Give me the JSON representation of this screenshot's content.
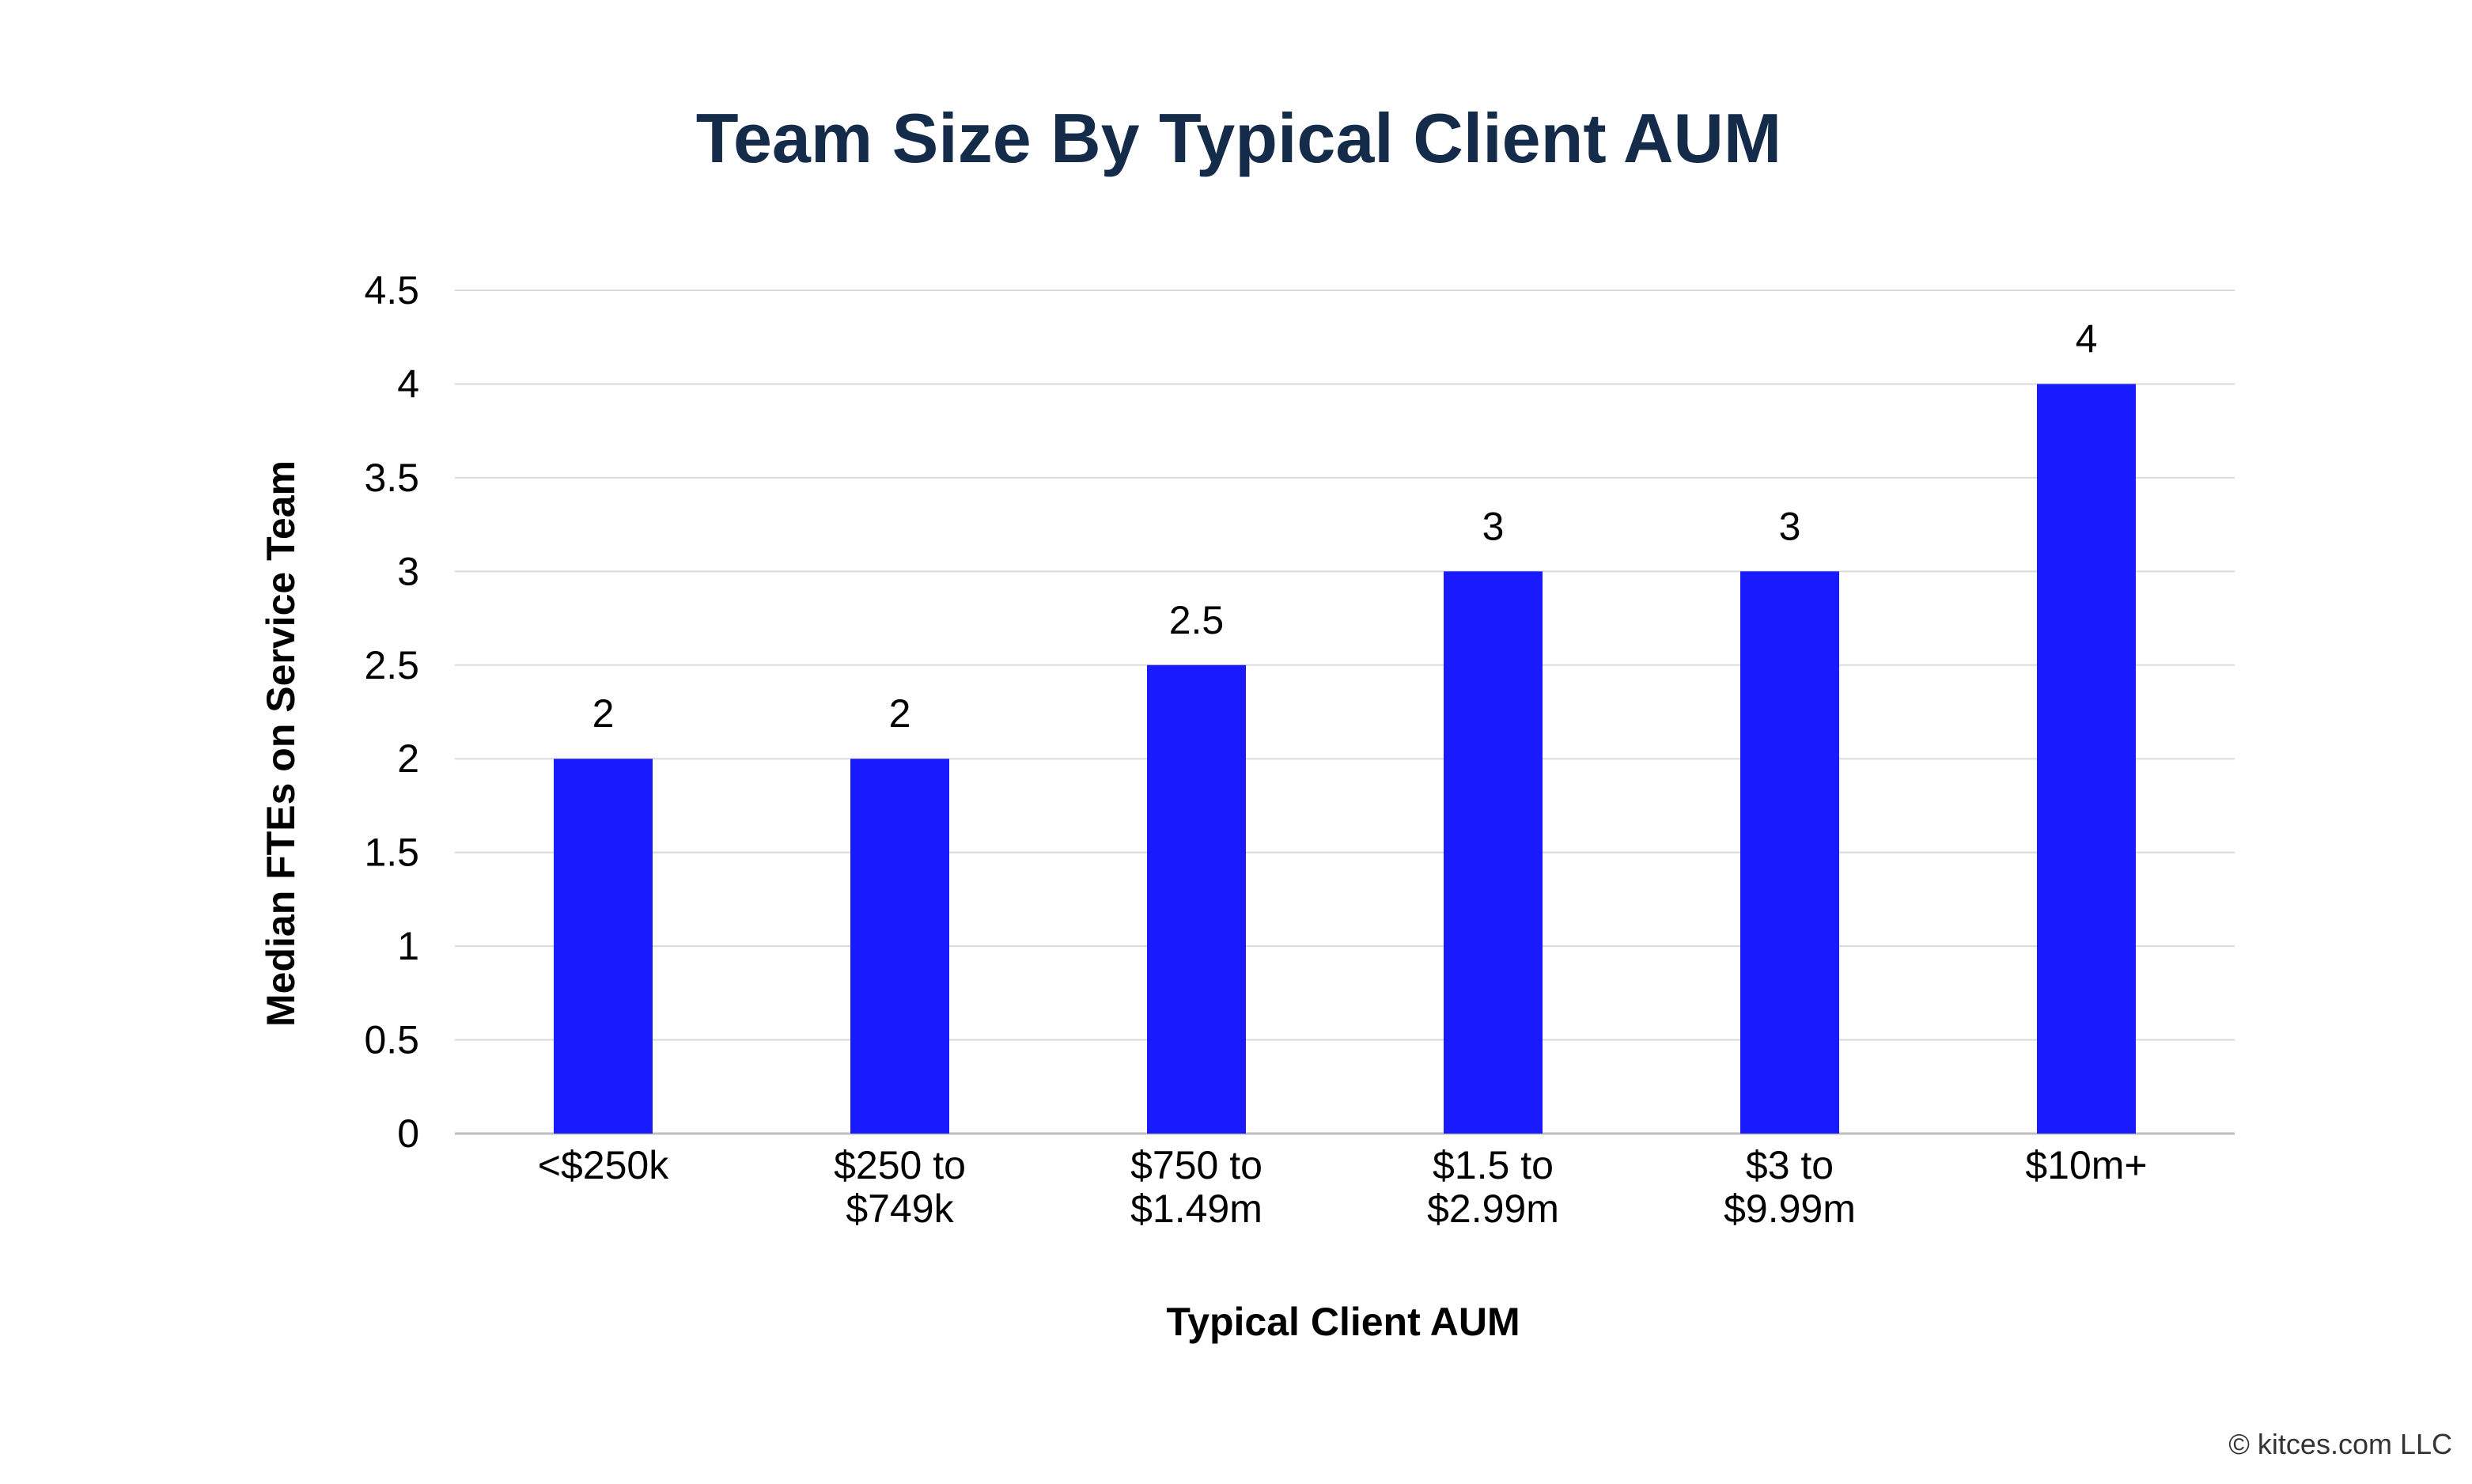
{
  "chart_data": {
    "type": "bar",
    "title": "Team Size By Typical Client AUM",
    "xlabel": "Typical Client AUM",
    "ylabel": "Median FTEs on Service Team",
    "categories": [
      [
        "<$250k"
      ],
      [
        "$250 to",
        "$749k"
      ],
      [
        "$750 to",
        "$1.49m"
      ],
      [
        "$1.5 to",
        "$2.99m"
      ],
      [
        "$3 to",
        "$9.99m"
      ],
      [
        "$10m+"
      ]
    ],
    "values": [
      2,
      2,
      2.5,
      3,
      3,
      4
    ],
    "data_labels": [
      "2",
      "2",
      "2.5",
      "3",
      "3",
      "4"
    ],
    "y_ticks": [
      "0",
      "0.5",
      "1",
      "1.5",
      "2",
      "2.5",
      "3",
      "3.5",
      "4",
      "4.5"
    ],
    "ylim": [
      0,
      4.5
    ],
    "grid": true,
    "legend": "none",
    "colors": {
      "bar": "#1a1aff",
      "title": "#152b4a",
      "text": "#000000",
      "grid": "#d9d9d9",
      "axis": "#bfbfbf"
    }
  },
  "footer": {
    "copyright": "© kitces.com LLC"
  }
}
